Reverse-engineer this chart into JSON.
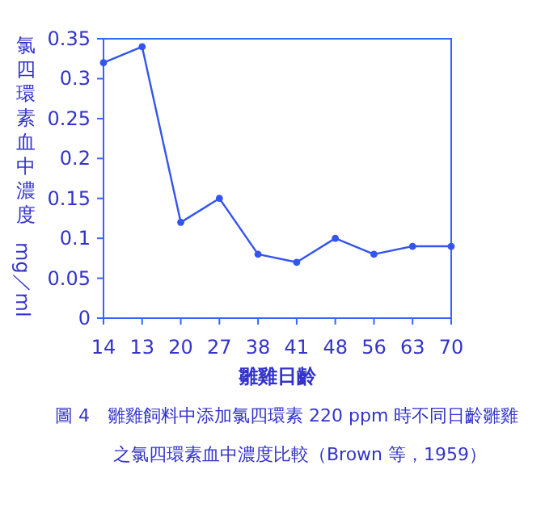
{
  "chart_data": {
    "type": "line",
    "xlabel": "雛雞日齡",
    "ylabel": "氯四環素血中濃度 mg／ml",
    "categories": [
      "14",
      "13",
      "20",
      "27",
      "38",
      "41",
      "48",
      "56",
      "63",
      "70"
    ],
    "series": [
      {
        "color": "#3355ee",
        "values": [
          0.32,
          0.34,
          0.12,
          0.15,
          0.08,
          0.07,
          0.1,
          0.08,
          0.09,
          0.09
        ]
      }
    ],
    "ylim": [
      0,
      0.35
    ],
    "yticks": [
      0,
      0.05,
      0.1,
      0.15,
      0.2,
      0.25,
      0.3,
      0.35
    ],
    "grid": false,
    "marker": "circle",
    "line_style": "solid",
    "annotations": [
      "圖 4　雛雞飼料中添加氯四環素 220 ppm 時不同日齡雛雞之氯四環素血中濃度比較（Brown 等，1959）"
    ]
  }
}
